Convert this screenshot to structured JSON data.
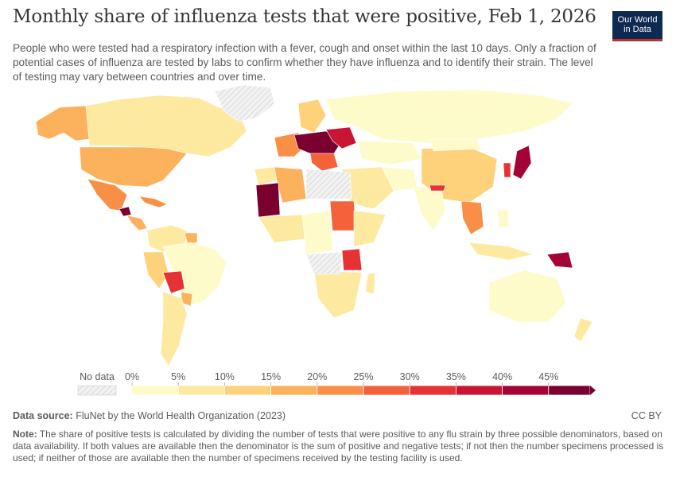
{
  "header": {
    "title": "Monthly share of influenza tests that were positive, Feb 1, 2026",
    "subtitle": "People who were tested had a respiratory infection with a fever, cough and onset within the last 10 days. Only a fraction of potential cases of influenza are tested by labs to confirm whether they have influenza and to identify their strain. The level of testing may vary between countries and over time.",
    "logo_line1": "Our World",
    "logo_line2": "in Data"
  },
  "legend": {
    "no_data_label": "No data",
    "ticks": [
      "0%",
      "5%",
      "10%",
      "15%",
      "20%",
      "25%",
      "30%",
      "35%",
      "40%",
      "45%"
    ],
    "colors": [
      "#fefbcb",
      "#fee9a0",
      "#fdd27a",
      "#fcb25c",
      "#f98f47",
      "#f3623b",
      "#e53234",
      "#c91434",
      "#a40435",
      "#7a0030"
    ]
  },
  "footer": {
    "source_label": "Data source:",
    "source_text": "FluNet by the World Health Organization (2023)",
    "license": "CC BY",
    "note_label": "Note:",
    "note_text": "The share of positive tests is calculated by dividing the number of tests that were positive to any flu strain by three possible denominators, based on data availability. If both values are available then the denominator is the sum of positive and negative tests; if not then the number specimens processed is used; if neither of those are available then the number of specimens received by the testing facility is used."
  },
  "map_regions": [
    {
      "name": "canada",
      "color": "#fee9a0"
    },
    {
      "name": "alaska",
      "color": "#fcb25c"
    },
    {
      "name": "greenland",
      "color": "#no-data"
    },
    {
      "name": "usa",
      "color": "#fcb25c"
    },
    {
      "name": "mexico",
      "color": "#f98f47"
    },
    {
      "name": "guatemala",
      "color": "#7a0030"
    },
    {
      "name": "brazil",
      "color": "#fefbcb"
    },
    {
      "name": "bolivia",
      "color": "#e53234"
    },
    {
      "name": "peru",
      "color": "#fee9a0"
    },
    {
      "name": "russia",
      "color": "#fefbcb"
    },
    {
      "name": "china",
      "color": "#fdd27a"
    },
    {
      "name": "japan",
      "color": "#a40435"
    },
    {
      "name": "mauritania",
      "color": "#7a0030"
    },
    {
      "name": "sudan",
      "color": "#f3623b"
    },
    {
      "name": "algeria",
      "color": "#fcb25c"
    },
    {
      "name": "tanzania",
      "color": "#e53234"
    },
    {
      "name": "australia",
      "color": "#fefbcb"
    },
    {
      "name": "png",
      "color": "#a40435"
    },
    {
      "name": "india",
      "color": "#fefbcb"
    },
    {
      "name": "central-europe",
      "color": "#7a0030"
    }
  ]
}
